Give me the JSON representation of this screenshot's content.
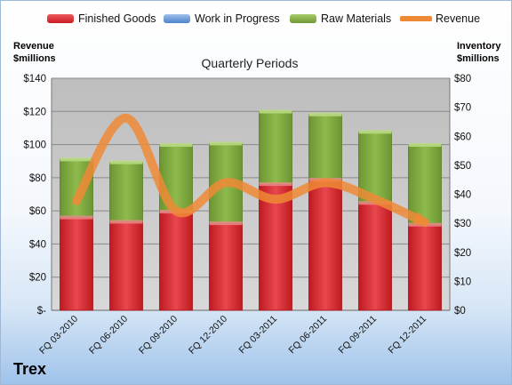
{
  "legend": {
    "finished_goods": "Finished Goods",
    "work_in_progress": "Work in Progress",
    "raw_materials": "Raw Materials",
    "revenue": "Revenue"
  },
  "axes": {
    "left_title_line1": "Revenue",
    "left_title_line2": "$millions",
    "right_title_line1": "Inventory",
    "right_title_line2": "$millions"
  },
  "chart_title": "Quarterly Periods",
  "company": "Trex",
  "colors": {
    "finished_goods": "#d7262d",
    "work_in_progress": "#5b8fd4",
    "raw_materials": "#7aa33b",
    "revenue": "#ee8a36",
    "plot_bg": "#c9c9c9"
  },
  "chart_data": {
    "type": "bar",
    "stacked": true,
    "categories": [
      "FQ 03-2010",
      "FQ 06-2010",
      "FQ 09-2010",
      "FQ 12-2010",
      "FQ 03-2011",
      "FQ 06-2011",
      "FQ 09-2011",
      "FQ 12-2011"
    ],
    "series": [
      {
        "name": "Finished Goods",
        "axis": "right",
        "values": [
          32,
          30.5,
          34,
          30,
          43.5,
          45,
          37,
          29.5
        ]
      },
      {
        "name": "Work in Progress",
        "axis": "right",
        "values": [
          0,
          0,
          0,
          0,
          0,
          0,
          0,
          0
        ]
      },
      {
        "name": "Raw Materials",
        "axis": "right",
        "values": [
          20,
          20.5,
          23,
          27.5,
          25,
          22.5,
          24.5,
          27.5
        ]
      },
      {
        "name": "Revenue",
        "axis": "left",
        "type": "line",
        "values": [
          66,
          116,
          60,
          77,
          67,
          77,
          67,
          53
        ]
      }
    ],
    "left_axis": {
      "ylim": [
        0,
        140
      ],
      "ticks": [
        "$-",
        "$20",
        "$40",
        "$60",
        "$80",
        "$100",
        "$120",
        "$140"
      ]
    },
    "right_axis": {
      "ylim": [
        0,
        80
      ],
      "ticks": [
        "$0",
        "$10",
        "$20",
        "$30",
        "$40",
        "$50",
        "$60",
        "$70",
        "$80"
      ]
    },
    "grid": true,
    "legend_position": "top"
  }
}
